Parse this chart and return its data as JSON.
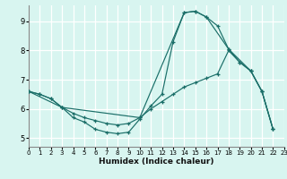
{
  "xlabel": "Humidex (Indice chaleur)",
  "bg_color": "#d8f5f0",
  "grid_color": "#ffffff",
  "line_color": "#1a6e68",
  "xlim": [
    0,
    23
  ],
  "ylim": [
    4.7,
    9.55
  ],
  "xticks": [
    0,
    1,
    2,
    3,
    4,
    5,
    6,
    7,
    8,
    9,
    10,
    11,
    12,
    13,
    14,
    15,
    16,
    17,
    18,
    19,
    20,
    21,
    22,
    23
  ],
  "yticks": [
    5,
    6,
    7,
    8,
    9
  ],
  "curve1_x": [
    0,
    1,
    2,
    3,
    4,
    5,
    6,
    7,
    8,
    9,
    10,
    11,
    12,
    13,
    14,
    15,
    16,
    17,
    18,
    19,
    20,
    21,
    22
  ],
  "curve1_y": [
    6.6,
    6.5,
    6.35,
    6.05,
    5.7,
    5.55,
    5.3,
    5.2,
    5.15,
    5.2,
    5.65,
    6.1,
    6.5,
    8.3,
    9.3,
    9.35,
    9.15,
    8.85,
    8.05,
    7.6,
    7.3,
    6.6,
    5.3
  ],
  "curve2_x": [
    0,
    3,
    10,
    14,
    15,
    16,
    18,
    20,
    21,
    22
  ],
  "curve2_y": [
    6.6,
    6.05,
    5.7,
    9.3,
    9.35,
    9.15,
    8.05,
    7.3,
    6.6,
    5.3
  ],
  "curve3_x": [
    0,
    1,
    2,
    3,
    4,
    5,
    6,
    7,
    8,
    9,
    10,
    11,
    12,
    13,
    14,
    15,
    16,
    17,
    18,
    19,
    20,
    21,
    22
  ],
  "curve3_y": [
    6.6,
    6.5,
    6.35,
    6.05,
    5.85,
    5.7,
    5.6,
    5.5,
    5.45,
    5.5,
    5.7,
    6.0,
    6.25,
    6.5,
    6.75,
    6.9,
    7.05,
    7.2,
    8.0,
    7.6,
    7.3,
    6.6,
    5.3
  ]
}
